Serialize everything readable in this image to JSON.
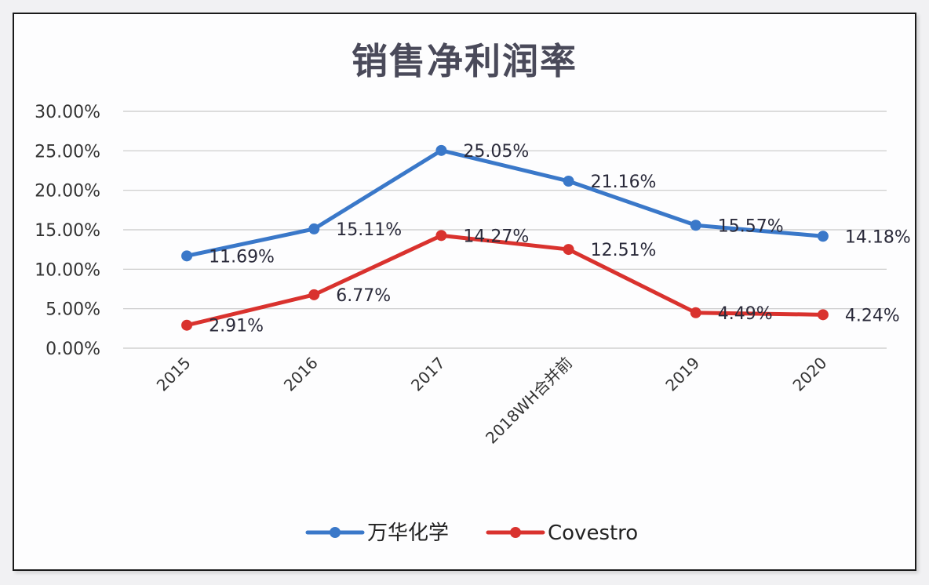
{
  "chart_data": {
    "type": "line",
    "title": "销售净利润率",
    "xlabel": "",
    "ylabel": "",
    "categories": [
      "2015",
      "2016",
      "2017",
      "2018WH合并前",
      "2019",
      "2020"
    ],
    "series": [
      {
        "name": "万华化学",
        "color": "#3a78c9",
        "values": [
          11.69,
          15.11,
          25.05,
          21.16,
          15.57,
          14.18
        ],
        "labels": [
          "11.69%",
          "15.11%",
          "25.05%",
          "21.16%",
          "15.57%",
          "14.18%"
        ]
      },
      {
        "name": "Covestro",
        "color": "#d9322e",
        "values": [
          2.91,
          6.77,
          14.27,
          12.51,
          4.49,
          4.24
        ],
        "labels": [
          "2.91%",
          "6.77%",
          "14.27%",
          "12.51%",
          "4.49%",
          "4.24%"
        ]
      }
    ],
    "ylim": [
      0,
      30
    ],
    "yticks": [
      "0.00%",
      "5.00%",
      "10.00%",
      "15.00%",
      "20.00%",
      "25.00%",
      "30.00%"
    ],
    "ytick_values": [
      0,
      5,
      10,
      15,
      20,
      25,
      30
    ],
    "grid": true,
    "legend_position": "bottom",
    "x_tick_rotation": -45
  },
  "colors": {
    "gridline": "#c8c8c8",
    "frame": "#1a1a1a",
    "background": "#fdfdfe"
  }
}
